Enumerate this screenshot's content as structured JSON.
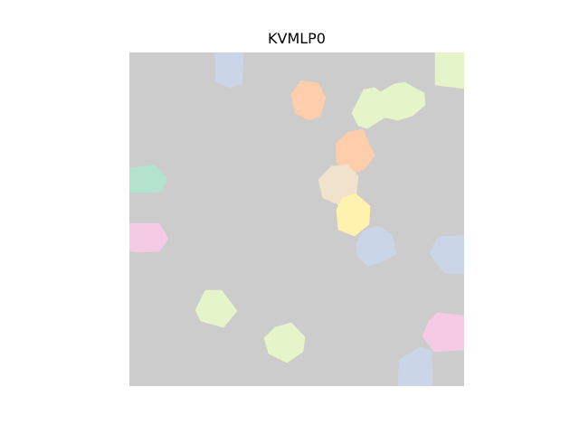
{
  "figure": {
    "title": "KVMLP0"
  },
  "plot": {
    "background_color": "#cccccc",
    "axes_visible": false
  },
  "shapes": [
    {
      "name": "cell-blue-top",
      "color": "#cbd5e8"
    },
    {
      "name": "cell-orange-top",
      "color": "#fdcdac"
    },
    {
      "name": "cell-green-top-a",
      "color": "#e6f5c9"
    },
    {
      "name": "cell-green-top-b",
      "color": "#e6f5c9"
    },
    {
      "name": "cell-green-corner",
      "color": "#e6f5c9"
    },
    {
      "name": "cell-orange-mid",
      "color": "#fdcdac"
    },
    {
      "name": "cell-tan-mid",
      "color": "#f1e2cc"
    },
    {
      "name": "cell-yellow-mid",
      "color": "#fff2ae"
    },
    {
      "name": "cell-blue-mid",
      "color": "#cbd5e8"
    },
    {
      "name": "cell-teal-left",
      "color": "#b3e2cd"
    },
    {
      "name": "cell-pink-left",
      "color": "#f4cae4"
    },
    {
      "name": "cell-blue-right",
      "color": "#cbd5e8"
    },
    {
      "name": "cell-green-lower-left",
      "color": "#e6f5c9"
    },
    {
      "name": "cell-green-lower-mid",
      "color": "#e6f5c9"
    },
    {
      "name": "cell-pink-lower-right",
      "color": "#f4cae4"
    },
    {
      "name": "cell-blue-bottom-right",
      "color": "#cbd5e8"
    }
  ]
}
